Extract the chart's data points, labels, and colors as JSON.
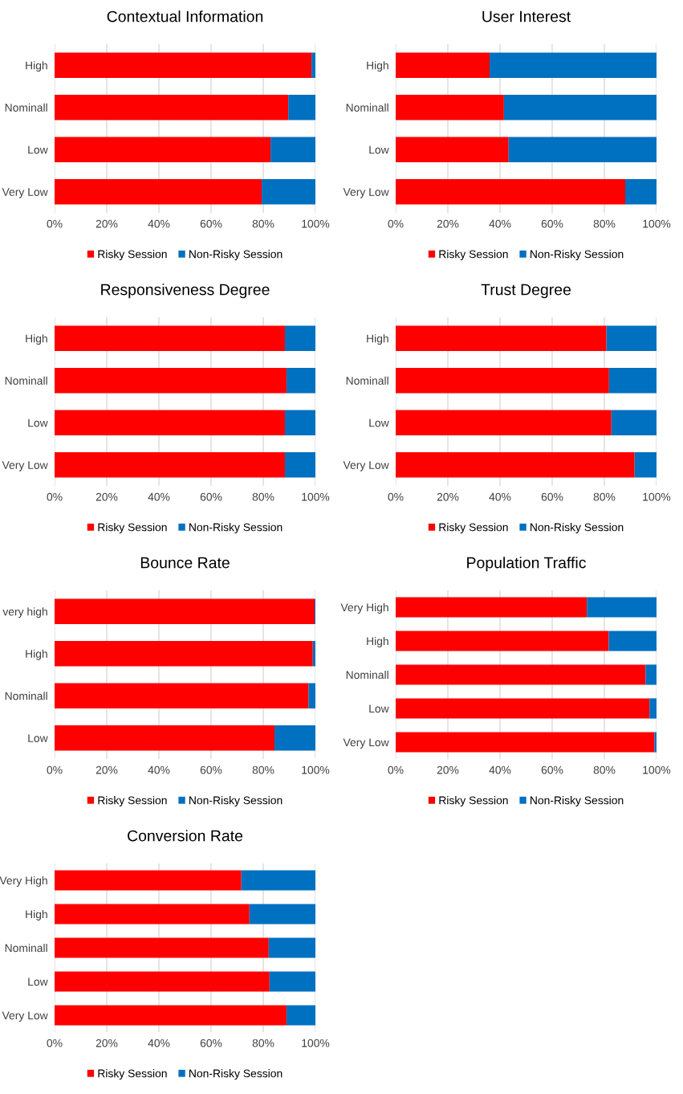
{
  "chart_data": [
    {
      "type": "bar",
      "title": "Contextual Information",
      "orientation": "horizontal",
      "stacked": true,
      "categories": [
        "High",
        "Nominall",
        "Low",
        "Very Low"
      ],
      "series": [
        {
          "name": "Risky Session",
          "color": "#ff0000",
          "values": [
            98.5,
            89.6,
            82.8,
            79.4
          ]
        },
        {
          "name": "Non-Risky Session",
          "color": "#0070c0",
          "values": [
            1.5,
            10.4,
            17.2,
            20.6
          ]
        }
      ],
      "xlim": [
        0,
        100
      ],
      "xticks": [
        {
          "value": 0,
          "label": "0%"
        },
        {
          "value": 20,
          "label": "20%"
        },
        {
          "value": 40,
          "label": "40%"
        },
        {
          "value": 60,
          "label": "60%"
        },
        {
          "value": 80,
          "label": "80%"
        },
        {
          "value": 100,
          "label": "100%"
        }
      ],
      "grid": "x",
      "legend": "bottom"
    },
    {
      "type": "bar",
      "title": "User Interest",
      "orientation": "horizontal",
      "stacked": true,
      "categories": [
        "High",
        "Nominall",
        "Low",
        "Very Low"
      ],
      "series": [
        {
          "name": "Risky Session",
          "color": "#ff0000",
          "values": [
            36.0,
            41.5,
            43.3,
            88.0
          ]
        },
        {
          "name": "Non-Risky Session",
          "color": "#0070c0",
          "values": [
            64.0,
            58.5,
            56.7,
            12.0
          ]
        }
      ],
      "xlim": [
        0,
        100
      ],
      "xticks": [
        {
          "value": 0,
          "label": "0%"
        },
        {
          "value": 20,
          "label": "20%"
        },
        {
          "value": 40,
          "label": "40%"
        },
        {
          "value": 60,
          "label": "60%"
        },
        {
          "value": 80,
          "label": "80%"
        },
        {
          "value": 100,
          "label": "100%"
        }
      ],
      "grid": "x",
      "legend": "bottom"
    },
    {
      "type": "bar",
      "title": "Responsiveness Degree",
      "orientation": "horizontal",
      "stacked": true,
      "categories": [
        "High",
        "Nominall",
        "Low",
        "Very Low"
      ],
      "series": [
        {
          "name": "Risky Session",
          "color": "#ff0000",
          "values": [
            88.3,
            88.9,
            88.3,
            88.3
          ]
        },
        {
          "name": "Non-Risky Session",
          "color": "#0070c0",
          "values": [
            11.7,
            11.1,
            11.7,
            11.7
          ]
        }
      ],
      "xlim": [
        0,
        100
      ],
      "xticks": [
        {
          "value": 0,
          "label": "0%"
        },
        {
          "value": 20,
          "label": "20%"
        },
        {
          "value": 40,
          "label": "40%"
        },
        {
          "value": 60,
          "label": "60%"
        },
        {
          "value": 80,
          "label": "80%"
        },
        {
          "value": 100,
          "label": "100%"
        }
      ],
      "grid": "x",
      "legend": "bottom"
    },
    {
      "type": "bar",
      "title": "Trust Degree",
      "orientation": "horizontal",
      "stacked": true,
      "categories": [
        "High",
        "Nominall",
        "Low",
        "Very Low"
      ],
      "series": [
        {
          "name": "Risky Session",
          "color": "#ff0000",
          "values": [
            80.8,
            81.8,
            82.7,
            91.6
          ]
        },
        {
          "name": "Non-Risky Session",
          "color": "#0070c0",
          "values": [
            19.2,
            18.2,
            17.3,
            8.4
          ]
        }
      ],
      "xlim": [
        0,
        100
      ],
      "xticks": [
        {
          "value": 0,
          "label": "0%"
        },
        {
          "value": 20,
          "label": "20%"
        },
        {
          "value": 40,
          "label": "40%"
        },
        {
          "value": 60,
          "label": "60%"
        },
        {
          "value": 80,
          "label": "80%"
        },
        {
          "value": 100,
          "label": "100%"
        }
      ],
      "grid": "x",
      "legend": "bottom"
    },
    {
      "type": "bar",
      "title": "Bounce Rate",
      "orientation": "horizontal",
      "stacked": true,
      "categories": [
        "very high",
        "High",
        "Nominall",
        "Low"
      ],
      "series": [
        {
          "name": "Risky Session",
          "color": "#ff0000",
          "values": [
            99.7,
            99.0,
            97.4,
            84.3
          ]
        },
        {
          "name": "Non-Risky Session",
          "color": "#0070c0",
          "values": [
            0.3,
            1.0,
            2.6,
            15.7
          ]
        }
      ],
      "xlim": [
        0,
        100
      ],
      "xticks": [
        {
          "value": 0,
          "label": "0%"
        },
        {
          "value": 20,
          "label": "20%"
        },
        {
          "value": 40,
          "label": "40%"
        },
        {
          "value": 60,
          "label": "60%"
        },
        {
          "value": 80,
          "label": "80%"
        },
        {
          "value": 100,
          "label": "100%"
        }
      ],
      "grid": "x",
      "legend": "bottom"
    },
    {
      "type": "bar",
      "title": "Population Traffic",
      "orientation": "horizontal",
      "stacked": true,
      "categories": [
        "Very High",
        "High",
        "Nominall",
        "Low",
        "Very Low"
      ],
      "series": [
        {
          "name": "Risky Session",
          "color": "#ff0000",
          "values": [
            73.3,
            81.7,
            95.8,
            97.3,
            99.2
          ]
        },
        {
          "name": "Non-Risky Session",
          "color": "#0070c0",
          "values": [
            26.7,
            18.3,
            4.2,
            2.7,
            0.8
          ]
        }
      ],
      "xlim": [
        0,
        100
      ],
      "xticks": [
        {
          "value": 0,
          "label": "0%"
        },
        {
          "value": 20,
          "label": "20%"
        },
        {
          "value": 40,
          "label": "40%"
        },
        {
          "value": 60,
          "label": "60%"
        },
        {
          "value": 80,
          "label": "80%"
        },
        {
          "value": 100,
          "label": "100%"
        }
      ],
      "grid": "x",
      "legend": "bottom"
    },
    {
      "type": "bar",
      "title": "Conversion Rate",
      "orientation": "horizontal",
      "stacked": true,
      "categories": [
        "Very High",
        "High",
        "Nominall",
        "Low",
        "Very Low"
      ],
      "series": [
        {
          "name": "Risky Session",
          "color": "#ff0000",
          "values": [
            71.6,
            74.7,
            82.1,
            82.4,
            88.9
          ]
        },
        {
          "name": "Non-Risky Session",
          "color": "#0070c0",
          "values": [
            28.4,
            25.3,
            17.9,
            17.6,
            11.1
          ]
        }
      ],
      "xlim": [
        0,
        100
      ],
      "xticks": [
        {
          "value": 0,
          "label": "0%"
        },
        {
          "value": 20,
          "label": "20%"
        },
        {
          "value": 40,
          "label": "40%"
        },
        {
          "value": 60,
          "label": "60%"
        },
        {
          "value": 80,
          "label": "80%"
        },
        {
          "value": 100,
          "label": "100%"
        }
      ],
      "grid": "x",
      "legend": "bottom"
    }
  ]
}
